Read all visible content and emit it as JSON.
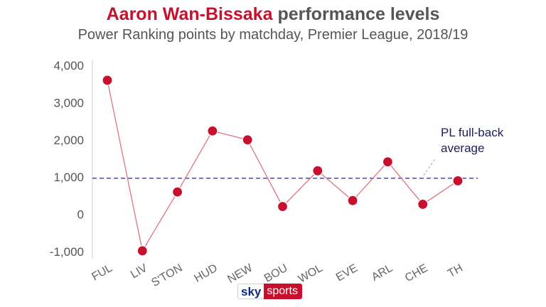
{
  "title_highlight": "Aaron Wan-Bissaka",
  "title_rest": "performance levels",
  "subtitle": "Power Ranking points by matchday, Premier League, 2018/19",
  "chart_data": {
    "type": "line",
    "categories": [
      "FUL",
      "LIV",
      "S'TON",
      "HUD",
      "NEW",
      "BOU",
      "WOL",
      "EVE",
      "ARL",
      "CHE",
      "TH"
    ],
    "values": [
      3600,
      -980,
      600,
      2240,
      2000,
      210,
      1170,
      370,
      1410,
      270,
      900
    ],
    "ylim": [
      -1000,
      4000
    ],
    "yticks": [
      4000,
      3000,
      2000,
      1000,
      0,
      -1000
    ],
    "ytick_labels": [
      "4,000",
      "3,000",
      "2,000",
      "1,000",
      "0",
      "-1,000"
    ],
    "reference_line": {
      "value": 970,
      "label_lines": [
        "PL full-back",
        "average"
      ]
    },
    "grid": false,
    "colors": {
      "line": "#e0747e",
      "marker": "#c8102e",
      "reference": "#3c3c8c"
    }
  },
  "logo": {
    "sky": "sky",
    "sports": "sports"
  }
}
